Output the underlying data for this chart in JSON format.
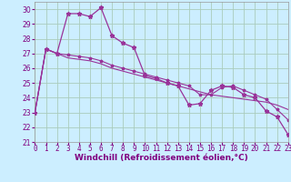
{
  "xlabel": "Windchill (Refroidissement éolien,°C)",
  "bg_color": "#cceeff",
  "grid_color": "#aaccbb",
  "line_color": "#993399",
  "xlim": [
    0,
    23
  ],
  "ylim": [
    21,
    30.5
  ],
  "yticks": [
    21,
    22,
    23,
    24,
    25,
    26,
    27,
    28,
    29,
    30
  ],
  "xticks": [
    0,
    1,
    2,
    3,
    4,
    5,
    6,
    7,
    8,
    9,
    10,
    11,
    12,
    13,
    14,
    15,
    16,
    17,
    18,
    19,
    20,
    21,
    22,
    23
  ],
  "line1_x": [
    0,
    1,
    2,
    3,
    4,
    5,
    6,
    7,
    8,
    9,
    10,
    11,
    12,
    13,
    14,
    15,
    16,
    17,
    18,
    19,
    20,
    21,
    22,
    23
  ],
  "line1_y": [
    23.0,
    27.3,
    27.0,
    29.7,
    29.7,
    29.5,
    30.1,
    28.2,
    27.7,
    27.4,
    25.5,
    25.3,
    25.0,
    24.8,
    23.5,
    23.6,
    24.5,
    24.8,
    24.7,
    24.2,
    24.0,
    23.1,
    22.7,
    21.5
  ],
  "line2_x": [
    0,
    1,
    2,
    3,
    4,
    5,
    6,
    7,
    8,
    9,
    10,
    11,
    12,
    13,
    14,
    15,
    16,
    17,
    18,
    19,
    20,
    21,
    22,
    23
  ],
  "line2_y": [
    23.0,
    27.3,
    27.0,
    26.7,
    26.6,
    26.5,
    26.3,
    26.0,
    25.8,
    25.6,
    25.4,
    25.2,
    25.0,
    24.8,
    24.6,
    24.4,
    24.2,
    24.1,
    24.0,
    23.9,
    23.8,
    23.7,
    23.5,
    23.2
  ],
  "line3_x": [
    0,
    1,
    2,
    3,
    4,
    5,
    6,
    7,
    8,
    9,
    10,
    11,
    12,
    13,
    14,
    15,
    16,
    17,
    18,
    19,
    20,
    21,
    22,
    23
  ],
  "line3_y": [
    23.0,
    27.3,
    27.0,
    26.9,
    26.8,
    26.7,
    26.5,
    26.2,
    26.0,
    25.8,
    25.6,
    25.4,
    25.2,
    25.0,
    24.8,
    24.2,
    24.2,
    24.7,
    24.8,
    24.5,
    24.2,
    23.9,
    23.2,
    22.5
  ],
  "xlabel_fontsize": 6.5,
  "tick_fontsize": 5.5
}
